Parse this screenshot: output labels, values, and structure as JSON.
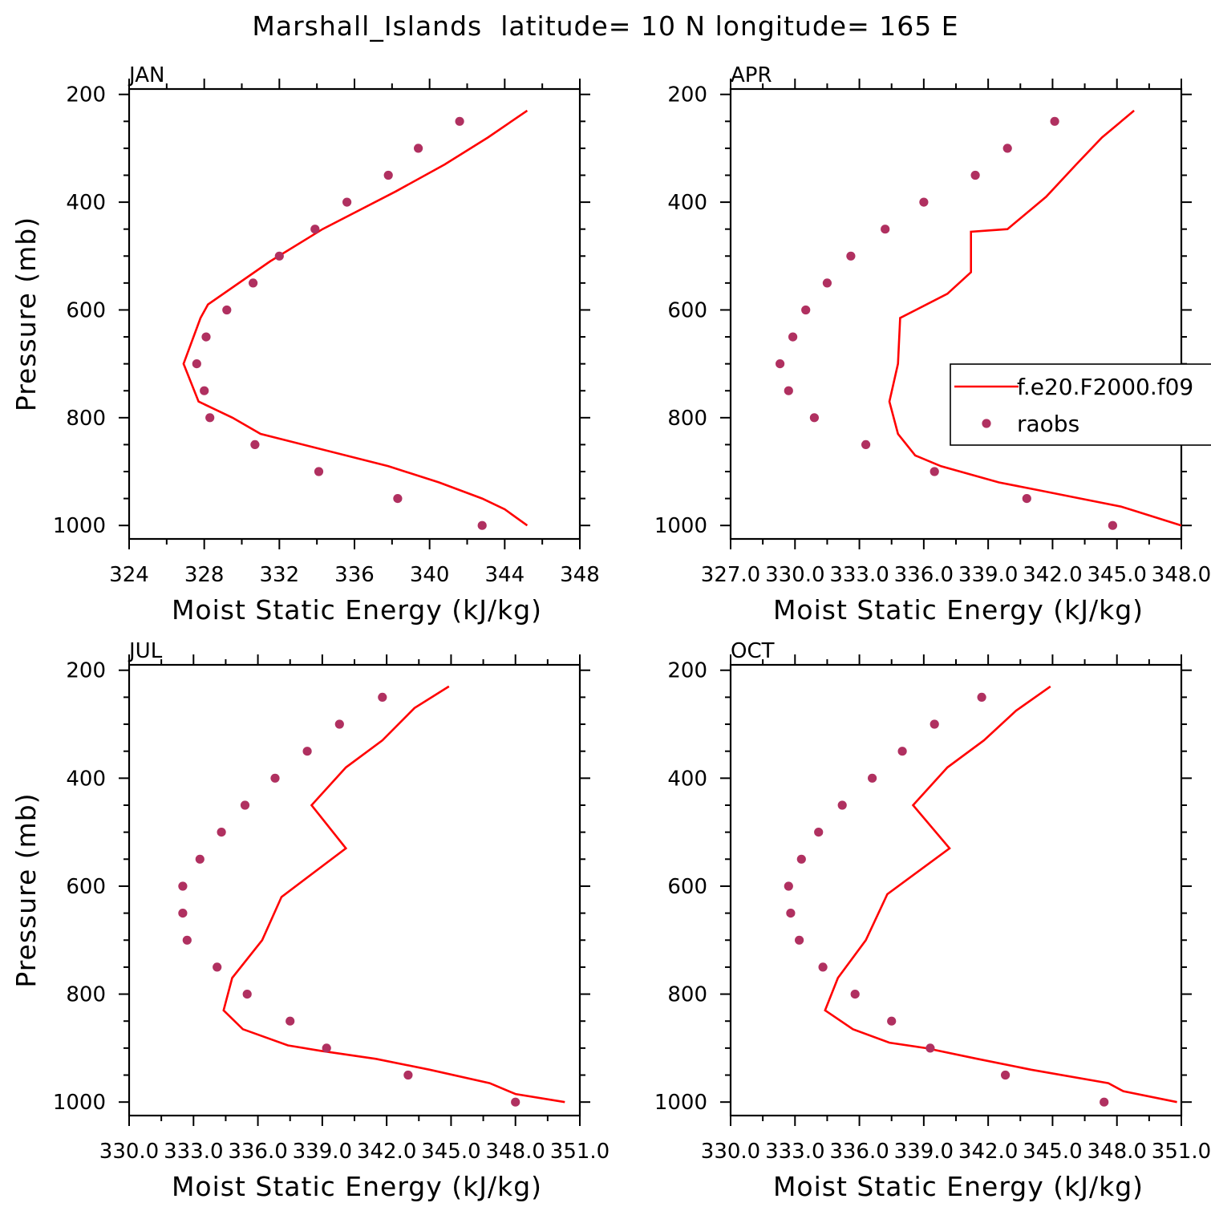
{
  "figure_title": "Marshall_Islands  latitude= 10 N longitude= 165 E",
  "colors": {
    "model": "#ff0000",
    "obs": "#b03060",
    "axis": "#000000",
    "background": "#ffffff"
  },
  "legend": {
    "entries": [
      "f.e20.F2000.f09",
      "raobs"
    ],
    "placement": "right of APR panel, clipped"
  },
  "chart_data": [
    {
      "type": "line",
      "panel": "JAN",
      "xlabel": "Moist Static Energy (kJ/kg)",
      "ylabel": "Pressure (mb)",
      "xlim": [
        324,
        348
      ],
      "ylim": [
        1000,
        200
      ],
      "xticks": [
        324,
        328,
        332,
        336,
        340,
        344,
        348
      ],
      "xtick_labels": [
        "324",
        "328",
        "332",
        "336",
        "340",
        "344",
        "348"
      ],
      "yticks": [
        200,
        400,
        600,
        800,
        1000
      ],
      "ytick_labels": [
        "200",
        "400",
        "600",
        "800",
        "1000"
      ],
      "series": [
        {
          "name": "f.e20.F2000.f09",
          "style": "line",
          "x": [
            345.2,
            343.1,
            340.8,
            338.2,
            334.3,
            331.5,
            328.2,
            327.8,
            326.9,
            327.7,
            329.5,
            331.0,
            337.8,
            340.5,
            342.8,
            344.0,
            345.2
          ],
          "y": [
            230,
            280,
            330,
            380,
            450,
            510,
            590,
            615,
            700,
            770,
            800,
            830,
            890,
            920,
            950,
            970,
            1000
          ]
        },
        {
          "name": "raobs",
          "style": "dot",
          "x": [
            341.6,
            339.4,
            337.8,
            335.6,
            333.9,
            332.0,
            330.6,
            329.2,
            328.1,
            327.6,
            328.0,
            328.3,
            330.7,
            334.1,
            338.3,
            342.8
          ],
          "y": [
            250,
            300,
            350,
            400,
            450,
            500,
            550,
            600,
            650,
            700,
            750,
            800,
            850,
            900,
            950,
            1000
          ]
        }
      ]
    },
    {
      "type": "line",
      "panel": "APR",
      "xlabel": "Moist Static Energy (kJ/kg)",
      "ylabel": "",
      "xlim": [
        327.0,
        348.0
      ],
      "ylim": [
        1000,
        200
      ],
      "xticks": [
        327.0,
        330.0,
        333.0,
        336.0,
        339.0,
        342.0,
        345.0,
        348.0
      ],
      "xtick_labels": [
        "327.0",
        "330.0",
        "333.0",
        "336.0",
        "339.0",
        "342.0",
        "345.0",
        "348.0"
      ],
      "yticks": [
        200,
        400,
        600,
        800,
        1000
      ],
      "ytick_labels": [
        "200",
        "400",
        "600",
        "800",
        "1000"
      ],
      "series": [
        {
          "name": "f.e20.F2000.f09",
          "style": "line",
          "x": [
            345.8,
            344.3,
            343.1,
            341.7,
            339.9,
            338.2,
            338.2,
            337.1,
            334.9,
            334.8,
            334.4,
            334.8,
            335.6,
            336.8,
            339.5,
            341.4,
            343.3,
            345.2,
            348.0
          ],
          "y": [
            230,
            280,
            330,
            390,
            450,
            455,
            530,
            570,
            615,
            700,
            770,
            830,
            870,
            890,
            920,
            935,
            950,
            965,
            1000
          ]
        },
        {
          "name": "raobs",
          "style": "dot",
          "x": [
            342.1,
            339.9,
            338.4,
            336.0,
            334.2,
            332.6,
            331.5,
            330.5,
            329.9,
            329.3,
            329.7,
            330.9,
            333.3,
            336.5,
            340.8,
            344.8
          ],
          "y": [
            250,
            300,
            350,
            400,
            450,
            500,
            550,
            600,
            650,
            700,
            750,
            800,
            850,
            900,
            950,
            1000
          ]
        }
      ]
    },
    {
      "type": "line",
      "panel": "JUL",
      "xlabel": "Moist Static Energy (kJ/kg)",
      "ylabel": "Pressure (mb)",
      "xlim": [
        330.0,
        351.0
      ],
      "ylim": [
        1000,
        200
      ],
      "xticks": [
        330.0,
        333.0,
        336.0,
        339.0,
        342.0,
        345.0,
        348.0,
        351.0
      ],
      "xtick_labels": [
        "330.0",
        "333.0",
        "336.0",
        "339.0",
        "342.0",
        "345.0",
        "348.0",
        "351.0"
      ],
      "yticks": [
        200,
        400,
        600,
        800,
        1000
      ],
      "ytick_labels": [
        "200",
        "400",
        "600",
        "800",
        "1000"
      ],
      "series": [
        {
          "name": "f.e20.F2000.f09",
          "style": "line",
          "x": [
            344.9,
            343.3,
            341.8,
            340.1,
            338.5,
            340.1,
            337.1,
            336.2,
            334.8,
            334.4,
            335.3,
            337.4,
            338.9,
            341.5,
            344.0,
            346.8,
            348.0,
            350.3
          ],
          "y": [
            230,
            270,
            330,
            380,
            450,
            530,
            620,
            700,
            770,
            830,
            865,
            895,
            905,
            920,
            940,
            965,
            985,
            1000
          ]
        },
        {
          "name": "raobs",
          "style": "dot",
          "x": [
            341.8,
            339.8,
            338.3,
            336.8,
            335.4,
            334.3,
            333.3,
            332.5,
            332.5,
            332.7,
            334.1,
            335.5,
            337.5,
            339.2,
            343.0,
            348.0
          ],
          "y": [
            250,
            300,
            350,
            400,
            450,
            500,
            550,
            600,
            650,
            700,
            750,
            800,
            850,
            900,
            950,
            1000
          ]
        }
      ]
    },
    {
      "type": "line",
      "panel": "OCT",
      "xlabel": "Moist Static Energy (kJ/kg)",
      "ylabel": "",
      "xlim": [
        330.0,
        351.0
      ],
      "ylim": [
        1000,
        200
      ],
      "xticks": [
        330.0,
        333.0,
        336.0,
        339.0,
        342.0,
        345.0,
        348.0,
        351.0
      ],
      "xtick_labels": [
        "330.0",
        "333.0",
        "336.0",
        "339.0",
        "342.0",
        "345.0",
        "348.0",
        "351.0"
      ],
      "yticks": [
        200,
        400,
        600,
        800,
        1000
      ],
      "ytick_labels": [
        "200",
        "400",
        "600",
        "800",
        "1000"
      ],
      "series": [
        {
          "name": "f.e20.F2000.f09",
          "style": "line",
          "x": [
            344.9,
            343.3,
            341.8,
            340.1,
            338.5,
            340.2,
            337.3,
            336.3,
            335.0,
            334.4,
            335.7,
            337.4,
            339.1,
            341.5,
            344.0,
            347.6,
            348.3,
            350.8
          ],
          "y": [
            230,
            275,
            330,
            380,
            450,
            530,
            615,
            700,
            770,
            830,
            865,
            890,
            900,
            920,
            940,
            965,
            980,
            1000
          ]
        },
        {
          "name": "raobs",
          "style": "dot",
          "x": [
            341.7,
            339.5,
            338.0,
            336.6,
            335.2,
            334.1,
            333.3,
            332.7,
            332.8,
            333.2,
            334.3,
            335.8,
            337.5,
            339.3,
            342.8,
            347.4
          ],
          "y": [
            250,
            300,
            350,
            400,
            450,
            500,
            550,
            600,
            650,
            700,
            750,
            800,
            850,
            900,
            950,
            1000
          ]
        }
      ]
    }
  ]
}
